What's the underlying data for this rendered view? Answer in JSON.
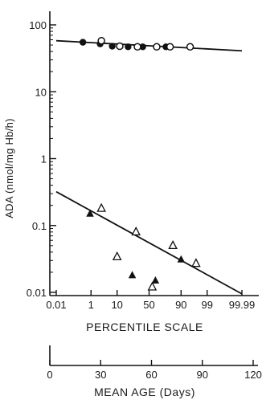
{
  "chart_data": [
    {
      "type": "scatter",
      "title": "",
      "ylabel": "ADA (nmol/mg Hb/h)",
      "xlabel": "PERCENTILE SCALE",
      "y_scale": "log",
      "x_scale": "probability",
      "ylim": [
        0.01,
        160
      ],
      "y_ticks": [
        {
          "value": 100,
          "label": "100"
        },
        {
          "value": 10,
          "label": "10"
        },
        {
          "value": 1,
          "label": "1"
        },
        {
          "value": 0.1,
          "label": "0.1"
        },
        {
          "value": 0.01,
          "label": "0.01"
        }
      ],
      "x_ticks": [
        {
          "value": 0.01,
          "label": "0.01"
        },
        {
          "value": 1,
          "label": "1"
        },
        {
          "value": 10,
          "label": "10"
        },
        {
          "value": 50,
          "label": "50"
        },
        {
          "value": 90,
          "label": "90"
        },
        {
          "value": 99,
          "label": "99"
        },
        {
          "value": 99.99,
          "label": "99.99"
        }
      ],
      "grid": false,
      "series": [
        {
          "marker": "filled-circle",
          "points": [
            [
              0.4,
              55
            ],
            [
              2.5,
              52
            ],
            [
              7,
              48
            ],
            [
              20,
              47
            ],
            [
              40,
              47
            ],
            [
              75,
              47
            ]
          ]
        },
        {
          "marker": "open-circle",
          "points": [
            [
              2.8,
              58
            ],
            [
              12,
              48
            ],
            [
              32,
              47
            ],
            [
              62,
              47
            ],
            [
              80,
              47
            ],
            [
              95,
              47
            ]
          ]
        },
        {
          "marker": "filled-triangle",
          "points": [
            [
              0.9,
              0.15
            ],
            [
              25,
              0.018
            ],
            [
              60,
              0.015
            ],
            [
              90,
              0.031
            ]
          ]
        },
        {
          "marker": "open-triangle",
          "points": [
            [
              2.8,
              0.18
            ],
            [
              10,
              0.034
            ],
            [
              30,
              0.08
            ],
            [
              55,
              0.012
            ],
            [
              83,
              0.05
            ],
            [
              97,
              0.027
            ]
          ]
        }
      ],
      "fit_lines": [
        {
          "from": [
            0.01,
            58
          ],
          "to": [
            99.99,
            41
          ]
        },
        {
          "from": [
            0.01,
            0.32
          ],
          "to": [
            99.99,
            0.0095
          ]
        }
      ]
    },
    {
      "type": "axis",
      "xlabel": "MEAN AGE (Days)",
      "x_ticks": [
        {
          "value": 0,
          "label": "0"
        },
        {
          "value": 30,
          "label": "30"
        },
        {
          "value": 60,
          "label": "60"
        },
        {
          "value": 90,
          "label": "90"
        },
        {
          "value": 120,
          "label": "120"
        }
      ]
    }
  ]
}
